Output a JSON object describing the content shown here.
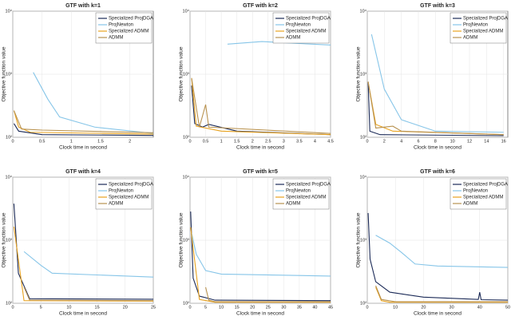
{
  "chart_data": [
    {
      "type": "line",
      "title": "GTF with k=1",
      "xlabel": "Clock time in second",
      "ylabel": "Objective function value",
      "log_y": true,
      "grid": true,
      "legend": "upper right",
      "xlim": [
        0,
        2.4
      ],
      "xticks": [
        0,
        0.5,
        1,
        1.5,
        2
      ],
      "ylim": [
        100,
        10000
      ],
      "yticks": [
        {
          "value": 100,
          "label": "10²"
        },
        {
          "value": 1000,
          "label": "10³"
        },
        {
          "value": 10000,
          "label": "10⁴"
        }
      ],
      "series": [
        {
          "name": "Specialized ProjDGA",
          "color": "#1b2a57",
          "x": [
            0.02,
            0.1,
            0.5,
            2.4
          ],
          "values": [
            165,
            125,
            110,
            107
          ]
        },
        {
          "name": "ProjNewton",
          "color": "#86c5e8",
          "x": [
            0.35,
            0.6,
            0.8,
            1.4,
            2.4
          ],
          "values": [
            1070,
            400,
            210,
            145,
            115
          ]
        },
        {
          "name": "Specialized ADMM",
          "color": "#e8a21f",
          "x": [
            0.02,
            0.1,
            0.3,
            2.4
          ],
          "values": [
            265,
            145,
            120,
            112
          ]
        },
        {
          "name": "ADMM",
          "color": "#b89250",
          "x": [
            0.02,
            0.15,
            0.5,
            2.4
          ],
          "values": [
            265,
            135,
            130,
            118
          ]
        }
      ]
    },
    {
      "type": "line",
      "title": "GTF with k=2",
      "xlabel": "Clock time in second",
      "ylabel": "Objective function value",
      "log_y": true,
      "grid": true,
      "legend": "upper right",
      "xlim": [
        0,
        4.5
      ],
      "xticks": [
        0,
        0.5,
        1,
        1.5,
        2,
        2.5,
        3,
        3.5,
        4,
        4.5
      ],
      "ylim": [
        100,
        10000
      ],
      "yticks": [
        {
          "value": 100,
          "label": "10²"
        },
        {
          "value": 1000,
          "label": "10³"
        },
        {
          "value": 10000,
          "label": "10⁴"
        }
      ],
      "series": [
        {
          "name": "Specialized ProjDGA",
          "color": "#1b2a57",
          "x": [
            0.05,
            0.15,
            0.4,
            0.6,
            1.5,
            4.5
          ],
          "values": [
            660,
            165,
            145,
            160,
            125,
            110
          ]
        },
        {
          "name": "ProjNewton",
          "color": "#86c5e8",
          "x": [
            1.2,
            2.3,
            4.5
          ],
          "values": [
            3000,
            3300,
            2900
          ]
        },
        {
          "name": "Specialized ADMM",
          "color": "#e8a21f",
          "x": [
            0.05,
            0.2,
            1,
            4.5
          ],
          "values": [
            870,
            150,
            125,
            110
          ]
        },
        {
          "name": "ADMM",
          "color": "#b89250",
          "x": [
            0.05,
            0.3,
            0.5,
            0.6,
            4.5
          ],
          "values": [
            870,
            145,
            330,
            145,
            115
          ]
        }
      ]
    },
    {
      "type": "line",
      "title": "GTF with k=3",
      "xlabel": "Clock time in second",
      "ylabel": "Objective function value",
      "log_y": true,
      "grid": true,
      "legend": "upper right",
      "xlim": [
        0,
        16.5
      ],
      "xticks": [
        0,
        2,
        4,
        6,
        8,
        10,
        12,
        14,
        16
      ],
      "ylim": [
        100,
        10000
      ],
      "yticks": [
        {
          "value": 100,
          "label": "10²"
        },
        {
          "value": 1000,
          "label": "10³"
        },
        {
          "value": 10000,
          "label": "10⁴"
        }
      ],
      "series": [
        {
          "name": "Specialized ProjDGA",
          "color": "#1b2a57",
          "x": [
            0.1,
            0.3,
            1.5,
            16
          ],
          "values": [
            760,
            125,
            110,
            106
          ]
        },
        {
          "name": "ProjNewton",
          "color": "#86c5e8",
          "x": [
            0.5,
            2,
            4,
            8,
            16
          ],
          "values": [
            4300,
            580,
            190,
            125,
            120
          ]
        },
        {
          "name": "Specialized ADMM",
          "color": "#e8a21f",
          "x": [
            0.1,
            1,
            3,
            16
          ],
          "values": [
            760,
            160,
            125,
            110
          ]
        },
        {
          "name": "ADMM",
          "color": "#b89250",
          "x": [
            0.1,
            1,
            3,
            4,
            16
          ],
          "values": [
            760,
            140,
            150,
            125,
            110
          ]
        }
      ]
    },
    {
      "type": "line",
      "title": "GTF with k=4",
      "xlabel": "Clock time in second",
      "ylabel": "Objective function value",
      "log_y": true,
      "grid": true,
      "legend": "upper right",
      "xlim": [
        0,
        25
      ],
      "xticks": [
        0,
        5,
        10,
        15,
        20,
        25
      ],
      "ylim": [
        100,
        10000
      ],
      "yticks": [
        {
          "value": 100,
          "label": "10²"
        },
        {
          "value": 1000,
          "label": "10³"
        },
        {
          "value": 10000,
          "label": "10⁴"
        }
      ],
      "series": [
        {
          "name": "Specialized ProjDGA",
          "color": "#1b2a57",
          "x": [
            0.2,
            1,
            3,
            25
          ],
          "values": [
            3800,
            300,
            118,
            116
          ]
        },
        {
          "name": "ProjNewton",
          "color": "#86c5e8",
          "x": [
            2,
            5,
            7,
            25
          ],
          "values": [
            660,
            400,
            300,
            260
          ]
        },
        {
          "name": "Specialized ADMM",
          "color": "#e8a21f",
          "x": [
            0.2,
            2,
            25
          ],
          "values": [
            1640,
            110,
            108
          ]
        },
        {
          "name": "ADMM",
          "color": "#b89250",
          "x": [
            2,
            3,
            25
          ],
          "values": [
            180,
            112,
            110
          ]
        }
      ]
    },
    {
      "type": "line",
      "title": "GTF with k=5",
      "xlabel": "Clock time in second",
      "ylabel": "Objective function value",
      "log_y": true,
      "grid": true,
      "legend": "upper right",
      "xlim": [
        0,
        45
      ],
      "xticks": [
        0,
        5,
        10,
        15,
        20,
        25,
        30,
        35,
        40,
        45
      ],
      "ylim": [
        100,
        10000
      ],
      "yticks": [
        {
          "value": 100,
          "label": "10²"
        },
        {
          "value": 1000,
          "label": "10³"
        },
        {
          "value": 10000,
          "label": "10⁴"
        }
      ],
      "series": [
        {
          "name": "Specialized ProjDGA",
          "color": "#1b2a57",
          "x": [
            0.2,
            1,
            3,
            8,
            45
          ],
          "values": [
            2850,
            250,
            130,
            112,
            110
          ]
        },
        {
          "name": "ProjNewton",
          "color": "#86c5e8",
          "x": [
            0.5,
            2,
            5,
            10,
            45
          ],
          "values": [
            1300,
            600,
            330,
            290,
            270
          ]
        },
        {
          "name": "Specialized ADMM",
          "color": "#e8a21f",
          "x": [
            0.2,
            3,
            8,
            45
          ],
          "values": [
            1600,
            115,
            104,
            104
          ]
        },
        {
          "name": "ADMM",
          "color": "#b89250",
          "x": [
            5,
            6,
            8,
            45
          ],
          "values": [
            180,
            112,
            106,
            106
          ]
        }
      ]
    },
    {
      "type": "line",
      "title": "GTF with k=6",
      "xlabel": "Clock time in second",
      "ylabel": "Objective function value",
      "log_y": true,
      "grid": true,
      "legend": "upper right",
      "xlim": [
        0,
        50
      ],
      "xticks": [
        0,
        10,
        20,
        30,
        40,
        50
      ],
      "ylim": [
        100,
        10000
      ],
      "yticks": [
        {
          "value": 100,
          "label": "10²"
        },
        {
          "value": 1000,
          "label": "10³"
        },
        {
          "value": 10000,
          "label": "10⁴"
        }
      ],
      "series": [
        {
          "name": "Specialized ProjDGA",
          "color": "#1b2a57",
          "x": [
            0.3,
            1,
            3,
            8,
            20,
            39.5,
            40,
            40.5,
            50
          ],
          "values": [
            2700,
            500,
            220,
            150,
            125,
            115,
            150,
            114,
            112
          ]
        },
        {
          "name": "ProjNewton",
          "color": "#86c5e8",
          "x": [
            3,
            8,
            12,
            17,
            25,
            50
          ],
          "values": [
            1200,
            900,
            650,
            420,
            390,
            370
          ]
        },
        {
          "name": "Specialized ADMM",
          "color": "#e8a21f",
          "x": [
            3,
            5,
            8,
            50
          ],
          "values": [
            180,
            110,
            104,
            104
          ]
        },
        {
          "name": "ADMM",
          "color": "#b89250",
          "x": [
            3,
            5,
            10,
            50
          ],
          "values": [
            190,
            115,
            106,
            106
          ]
        }
      ]
    }
  ]
}
